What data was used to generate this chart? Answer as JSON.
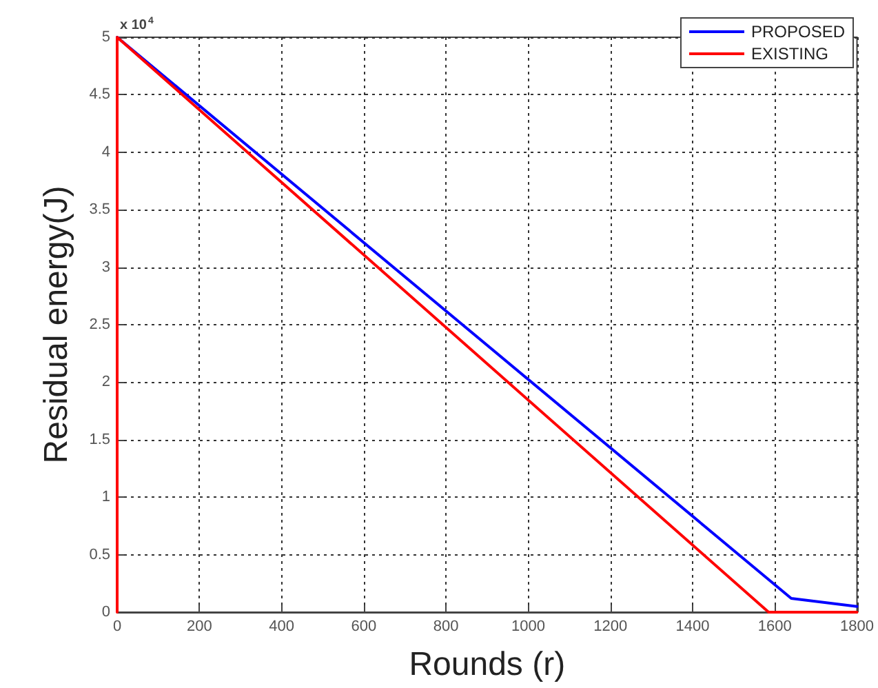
{
  "chart_data": {
    "type": "line",
    "xlabel": "Rounds (r)",
    "ylabel": "Residual energy(J)",
    "annotations": [
      "x 10$^{4}$"
    ],
    "xlim": [
      0,
      1800
    ],
    "xticks": [
      0,
      200,
      400,
      600,
      800,
      1000,
      1200,
      1400,
      1600,
      1800
    ],
    "ylim": [
      0,
      5
    ],
    "yticks": [
      0,
      0.5,
      1,
      1.5,
      2,
      2.5,
      3,
      3.5,
      4,
      4.5,
      5
    ],
    "series": [
      {
        "name": "PROPOSED",
        "color": "#0000ff",
        "x": [
          0,
          1640,
          1800
        ],
        "values": [
          5,
          0.12,
          0.05
        ]
      },
      {
        "name": "EXISTING",
        "color": "#ff0000",
        "x": [
          0,
          0,
          1585,
          1800
        ],
        "values": [
          0,
          5,
          0,
          0
        ]
      }
    ],
    "grid": true,
    "legend": "top right",
    "marker": "none",
    "line_style": "solid"
  }
}
